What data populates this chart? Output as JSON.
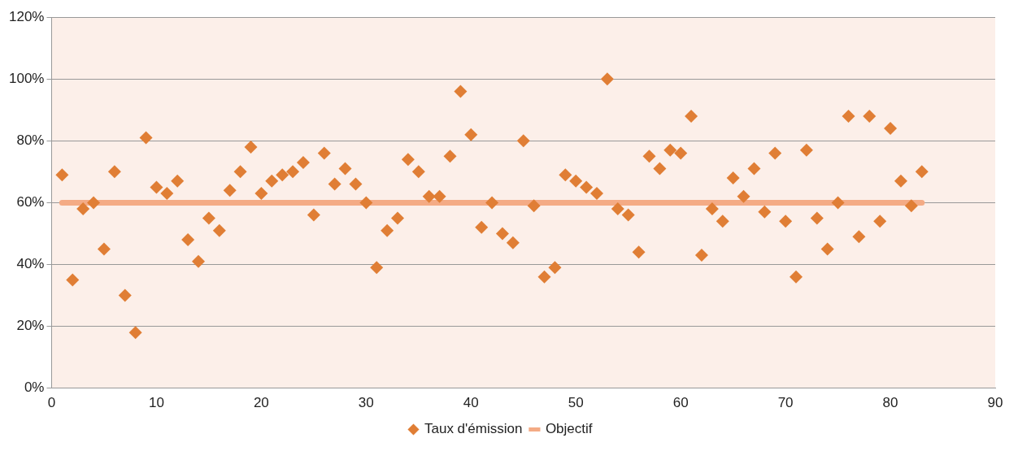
{
  "chart_data": {
    "type": "scatter",
    "xlim": [
      0,
      90
    ],
    "xticks": [
      0,
      10,
      20,
      30,
      40,
      50,
      60,
      70,
      80,
      90
    ],
    "ylim": [
      0,
      120
    ],
    "yticks": [
      {
        "value": 0,
        "label": "0%"
      },
      {
        "value": 20,
        "label": "20%"
      },
      {
        "value": 40,
        "label": "40%"
      },
      {
        "value": 60,
        "label": "60%"
      },
      {
        "value": 80,
        "label": "80%"
      },
      {
        "value": 100,
        "label": "100%"
      },
      {
        "value": 120,
        "label": "120%"
      }
    ],
    "grid": "y",
    "legend": "bottom",
    "series": [
      {
        "name": "Taux d'émission",
        "type": "scatter",
        "marker": "diamond",
        "color": "#e07e35",
        "x": [
          1,
          2,
          3,
          4,
          5,
          6,
          7,
          8,
          9,
          10,
          11,
          12,
          13,
          14,
          15,
          16,
          17,
          18,
          19,
          20,
          21,
          22,
          23,
          24,
          25,
          26,
          27,
          28,
          29,
          30,
          31,
          32,
          33,
          34,
          35,
          36,
          37,
          38,
          39,
          40,
          41,
          42,
          43,
          44,
          45,
          46,
          47,
          48,
          49,
          50,
          51,
          52,
          53,
          54,
          55,
          56,
          57,
          58,
          59,
          60,
          61,
          62,
          63,
          64,
          65,
          66,
          67,
          68,
          69,
          70,
          71,
          72,
          73,
          74,
          75,
          76,
          77,
          78,
          79,
          80,
          81,
          82,
          83
        ],
        "values": [
          69,
          35,
          58,
          60,
          45,
          70,
          30,
          18,
          81,
          65,
          63,
          67,
          48,
          41,
          55,
          51,
          64,
          70,
          78,
          63,
          67,
          69,
          70,
          73,
          56,
          76,
          66,
          71,
          66,
          60,
          39,
          51,
          55,
          74,
          70,
          62,
          62,
          75,
          96,
          82,
          52,
          60,
          50,
          47,
          80,
          59,
          36,
          39,
          69,
          67,
          65,
          63,
          100,
          58,
          56,
          44,
          75,
          71,
          77,
          76,
          88,
          43,
          58,
          54,
          68,
          62,
          71,
          57,
          76,
          54,
          36,
          77,
          55,
          45,
          60,
          88,
          49,
          88,
          54,
          84,
          67,
          59,
          70
        ]
      },
      {
        "name": "Objectif",
        "type": "line",
        "marker": "none",
        "line_style": "solid",
        "color": "#f4ab85",
        "x": [
          1,
          83
        ],
        "values": [
          60,
          60
        ]
      }
    ]
  }
}
